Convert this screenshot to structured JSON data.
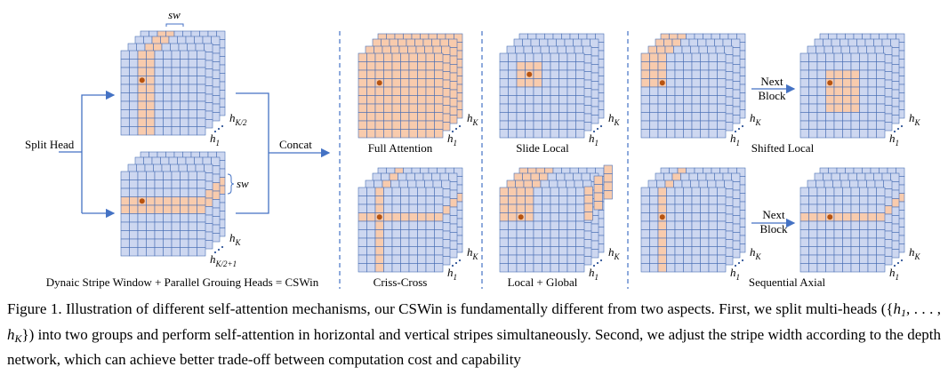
{
  "left": {
    "sw_top": "sw",
    "sw_side": "sw",
    "split_head": "Split Head",
    "concat": "Concat",
    "label": "Dynaic Stripe Window + Parallel Grouing Heads = CSWin",
    "heads": [
      {
        "base": "h",
        "sub": "K/2"
      },
      {
        "base": "h",
        "sub": "1"
      },
      {
        "base": "h",
        "sub": "K"
      },
      {
        "base": "h",
        "sub": "K/2+1"
      }
    ]
  },
  "panels": [
    {
      "label": "Full Attention",
      "heads": [
        {
          "base": "h",
          "sub": "K"
        },
        {
          "base": "h",
          "sub": "1"
        }
      ]
    },
    {
      "label": "Slide Local",
      "heads": [
        {
          "base": "h",
          "sub": "K"
        },
        {
          "base": "h",
          "sub": "1"
        }
      ]
    },
    {
      "label": "Shifted Local",
      "heads": [
        {
          "base": "h",
          "sub": "K"
        },
        {
          "base": "h",
          "sub": "1"
        },
        {
          "base": "h",
          "sub": "K"
        },
        {
          "base": "h",
          "sub": "1"
        }
      ],
      "next": [
        "Next",
        "Block"
      ]
    },
    {
      "label": "Criss-Cross",
      "heads": [
        {
          "base": "h",
          "sub": "K"
        },
        {
          "base": "h",
          "sub": "1"
        }
      ]
    },
    {
      "label": "Local + Global",
      "heads": [
        {
          "base": "h",
          "sub": "K"
        },
        {
          "base": "h",
          "sub": "1"
        }
      ]
    },
    {
      "label": "Sequential Axial",
      "heads": [
        {
          "base": "h",
          "sub": "K"
        },
        {
          "base": "h",
          "sub": "1"
        },
        {
          "base": "h",
          "sub": "K"
        },
        {
          "base": "h",
          "sub": "1"
        }
      ],
      "next": [
        "Next",
        "Block"
      ]
    }
  ],
  "caption": [
    "Figure 1. Illustration of different self-attention mechanisms, our CSWin is fundamentally different from two aspects. First, we split multi-heads ({",
    "h",
    "1",
    ", . . . , ",
    "h",
    "K",
    "}) into two groups and perform self-attention in horizontal and vertical stripes simultaneously. Second, we adjust the stripe width according to the depth network, which can achieve better trade-off between computation cost and capability"
  ]
}
